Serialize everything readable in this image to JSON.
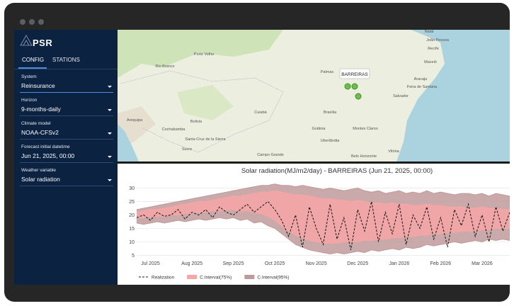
{
  "sidebar": {
    "logo": "PSR",
    "tabs": [
      "CONFIG",
      "STATIONS"
    ],
    "fields": [
      {
        "label": "System",
        "value": "Reinsurance"
      },
      {
        "label": "Horizon",
        "value": "9-months-daily"
      },
      {
        "label": "Climate model",
        "value": "NOAA-CFSv2"
      },
      {
        "label": "Forecast initial datetime",
        "value": "Jun 21, 2025, 00:00"
      },
      {
        "label": "Weather variable",
        "value": "Solar radiation"
      }
    ]
  },
  "map": {
    "tooltip": "BARREIRAS",
    "cities": [
      "Porto Velho",
      "Rio Branco",
      "Bolivia",
      "Cochabamba",
      "Santa Cruz de la Sierra",
      "Sucre",
      "Arequipa",
      "Cuiabá",
      "Palmas",
      "Brasília",
      "Goiânia",
      "Montes Claros",
      "Uberlândia",
      "Belo Horizonte",
      "Salvador",
      "Aracaju",
      "Maceió",
      "Recife",
      "João Pessoa",
      "Natal",
      "Feira de Santana",
      "Campo Grande",
      "Vitória"
    ]
  },
  "chart_data": {
    "type": "band-line",
    "title": "Solar radiation(MJ/m2/day) - BARREIRAS (Jun 21, 2025, 00:00)",
    "categories": [
      null,
      null,
      "Jul 2025",
      null,
      null,
      null,
      null,
      null,
      "Aug 2025",
      null,
      null,
      null,
      null,
      null,
      "Sep 2025",
      null,
      null,
      null,
      null,
      null,
      "Oct 2025",
      null,
      null,
      null,
      null,
      null,
      "Nov 2025",
      null,
      null,
      null,
      null,
      null,
      "Dec 2025",
      null,
      null,
      null,
      null,
      null,
      "Jan 2026",
      null,
      null,
      null,
      null,
      null,
      "Feb 2026",
      null,
      null,
      null,
      null,
      null,
      "Mar 2026",
      null,
      null,
      null,
      null
    ],
    "ylim": [
      3,
      32.5
    ],
    "yticks": [
      5,
      10,
      15,
      20,
      25,
      30
    ],
    "grid": true,
    "series": [
      {
        "name": "C.Interval(95%)",
        "color": "#bf9a9a",
        "upper": [
          22,
          22.5,
          23,
          23.5,
          24,
          24.5,
          25,
          25.5,
          26,
          26.5,
          27,
          27.5,
          28,
          28.5,
          29,
          29.5,
          30,
          30.5,
          31,
          31,
          31.5,
          31,
          31,
          30.5,
          31,
          30.5,
          30,
          29.5,
          30,
          29.5,
          29,
          29.5,
          30,
          29,
          28.5,
          29,
          28,
          28.5,
          29,
          28,
          28.5,
          28,
          29,
          28,
          28.5,
          28,
          27.5,
          28,
          28,
          27.5,
          28,
          27,
          28,
          27.5,
          27
        ],
        "lower": [
          17,
          16.5,
          17,
          17.5,
          17,
          17.5,
          18,
          17.5,
          18,
          18.5,
          18,
          18.5,
          19,
          18.5,
          19,
          18,
          18.5,
          17,
          17.5,
          16,
          15,
          13,
          11,
          9,
          8,
          7,
          6.5,
          6,
          5.5,
          6,
          5.5,
          6,
          6.5,
          6,
          7,
          6.5,
          7,
          7.5,
          7,
          8,
          7.5,
          8,
          9,
          8.5,
          9,
          9.5,
          10,
          9.5,
          10,
          10.5,
          10,
          11,
          10.5,
          11,
          10.5
        ]
      },
      {
        "name": "C.Interval(75%)",
        "color": "#f7a6a6",
        "upper": [
          21,
          21.5,
          22,
          22,
          22.5,
          23,
          23.5,
          24,
          24.5,
          25,
          25,
          25.5,
          26,
          26.5,
          27,
          27,
          27.5,
          28,
          28.5,
          28.5,
          29,
          28.5,
          28,
          27.5,
          27.5,
          27,
          26.5,
          26,
          26,
          25.5,
          25.5,
          25,
          25.5,
          25,
          24.5,
          24.5,
          24,
          24.5,
          24,
          24,
          23.5,
          23.5,
          24,
          23.5,
          23.5,
          23,
          23,
          23,
          22.5,
          22.5,
          23,
          22.5,
          22.5,
          22,
          22
        ],
        "lower": [
          19,
          19,
          19.5,
          19.5,
          19.5,
          20,
          20,
          20.5,
          20.5,
          21,
          21,
          21.5,
          21.5,
          22,
          22,
          21.5,
          21.5,
          21,
          20.5,
          19.5,
          18,
          16,
          14,
          12.5,
          11.5,
          10.5,
          10,
          9.5,
          9.5,
          9.5,
          10,
          10,
          10,
          10.5,
          10.5,
          11,
          11,
          11.5,
          11.5,
          12,
          12,
          12.5,
          12.5,
          13,
          13,
          13.5,
          13.5,
          14,
          14,
          14,
          14.5,
          14.5,
          15,
          15,
          15
        ]
      },
      {
        "name": "Realization",
        "color": "#111111",
        "values": [
          19,
          20,
          18,
          21,
          19.5,
          20,
          22,
          18.5,
          21,
          20,
          22,
          19,
          23,
          21,
          20,
          22,
          24,
          21,
          23,
          25,
          22,
          18,
          12,
          20,
          8,
          23,
          15,
          9,
          24,
          11,
          19,
          7,
          22,
          14,
          25,
          10,
          21,
          13,
          24,
          9,
          20,
          15,
          23,
          11,
          19,
          8,
          22,
          16,
          24,
          12,
          20,
          10,
          23,
          14,
          21
        ]
      }
    ],
    "legend_order": [
      "Realization",
      "C.Interval(75%)",
      "C.Interval(95%)"
    ]
  }
}
